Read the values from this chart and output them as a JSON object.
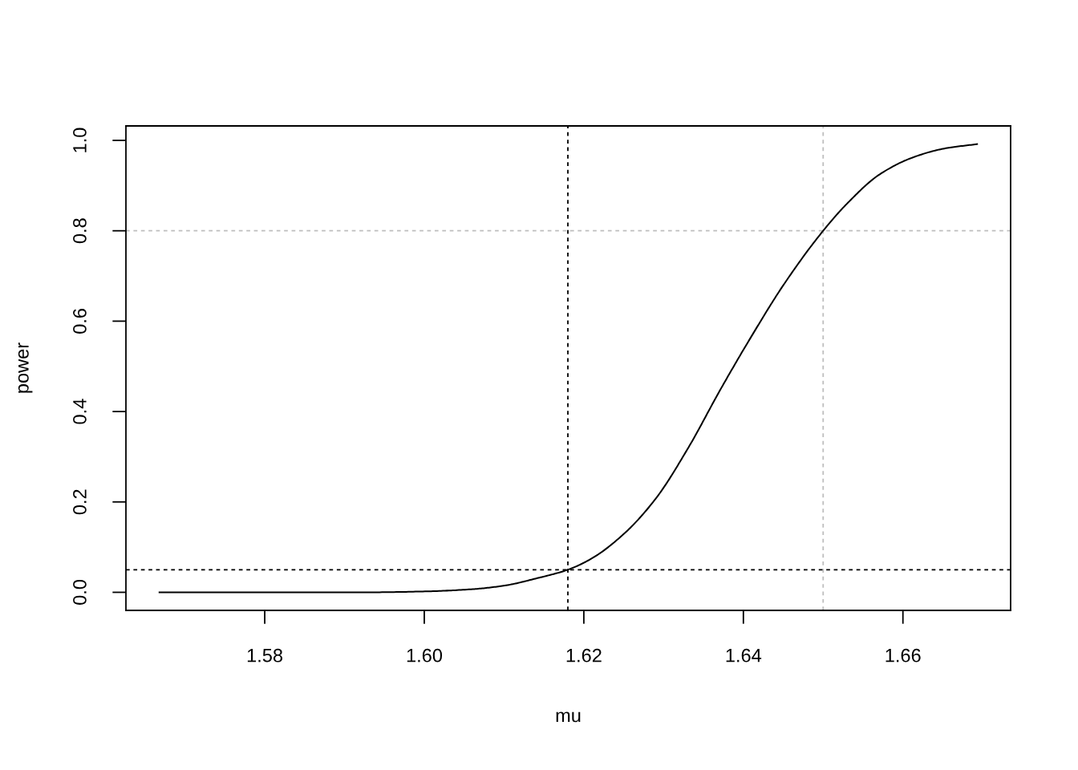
{
  "chart_data": {
    "type": "line",
    "xlabel": "mu",
    "ylabel": "power",
    "x": [
      1.5667,
      1.5929,
      1.6001,
      1.6061,
      1.6101,
      1.6141,
      1.618,
      1.621,
      1.625,
      1.629,
      1.6331,
      1.6371,
      1.6411,
      1.6451,
      1.65,
      1.6531,
      1.6571,
      1.6612,
      1.6652,
      1.6694
    ],
    "series": [
      {
        "color": "#000000",
        "values": [
          0,
          0,
          0.002,
          0.007,
          0.015,
          0.031,
          0.05,
          0.075,
          0.129,
          0.207,
          0.32,
          0.448,
          0.569,
          0.682,
          0.8,
          0.862,
          0.925,
          0.962,
          0.982,
          0.992
        ]
      }
    ],
    "xlim": [
      1.5626,
      1.6735
    ],
    "ylim": [
      -0.04,
      1.032
    ],
    "xticks": [
      1.58,
      {
        "value": 1.6,
        "label": "1.60"
      },
      1.62,
      1.64,
      1.66
    ],
    "yticks": [
      {
        "value": 0,
        "label": "0.0"
      },
      0.2,
      0.4,
      0.6,
      0.8,
      {
        "value": 1,
        "label": "1.0"
      }
    ],
    "line_style": "solid",
    "ref_lines": [
      {
        "axis": "x",
        "value": 1.618,
        "color": "#000000",
        "line_style": "dotted"
      },
      {
        "axis": "x",
        "value": 1.65,
        "color": "#bebebe",
        "line_style": "dotted"
      },
      {
        "axis": "y",
        "value": 0.05,
        "color": "#000000",
        "line_style": "dotted"
      },
      {
        "axis": "y",
        "value": 0.8,
        "color": "#bebebe",
        "line_style": "dotted"
      }
    ]
  }
}
